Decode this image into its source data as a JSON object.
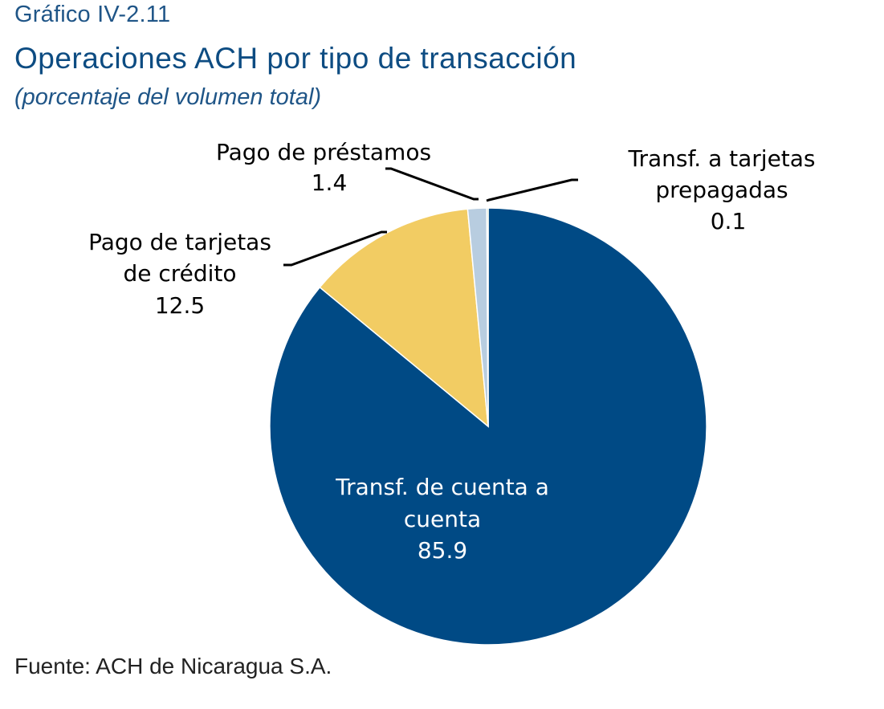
{
  "header": {
    "label": "Gráfico IV-2.11",
    "title": "Operaciones ACH por tipo de transacción",
    "subtitle": "(porcentaje del volumen total)"
  },
  "source": "Fuente: ACH de Nicaragua S.A.",
  "chart_data": {
    "type": "pie",
    "title": "Operaciones ACH por tipo de transacción",
    "subtitle": "(porcentaje del volumen total)",
    "start": "12 o'clock",
    "direction": "clockwise",
    "slices": [
      {
        "label": [
          "Transf. de cuenta a",
          "cuenta"
        ],
        "value": 85.9,
        "value_label": "85.9",
        "color": "#004a85",
        "label_position": "inside"
      },
      {
        "label": [
          "Pago de tarjetas",
          "de crédito"
        ],
        "value": 12.5,
        "value_label": "12.5",
        "color": "#f2cc63",
        "label_position": "outside-left"
      },
      {
        "label": [
          "Pago de préstamos"
        ],
        "value": 1.4,
        "value_label": "1.4",
        "color": "#b8cde0",
        "label_position": "outside-top"
      },
      {
        "label": [
          "Transf. a tarjetas",
          "prepagadas"
        ],
        "value": 0.1,
        "value_label": "0.1",
        "color": "#7aab3c",
        "label_position": "outside-top-right"
      }
    ]
  }
}
